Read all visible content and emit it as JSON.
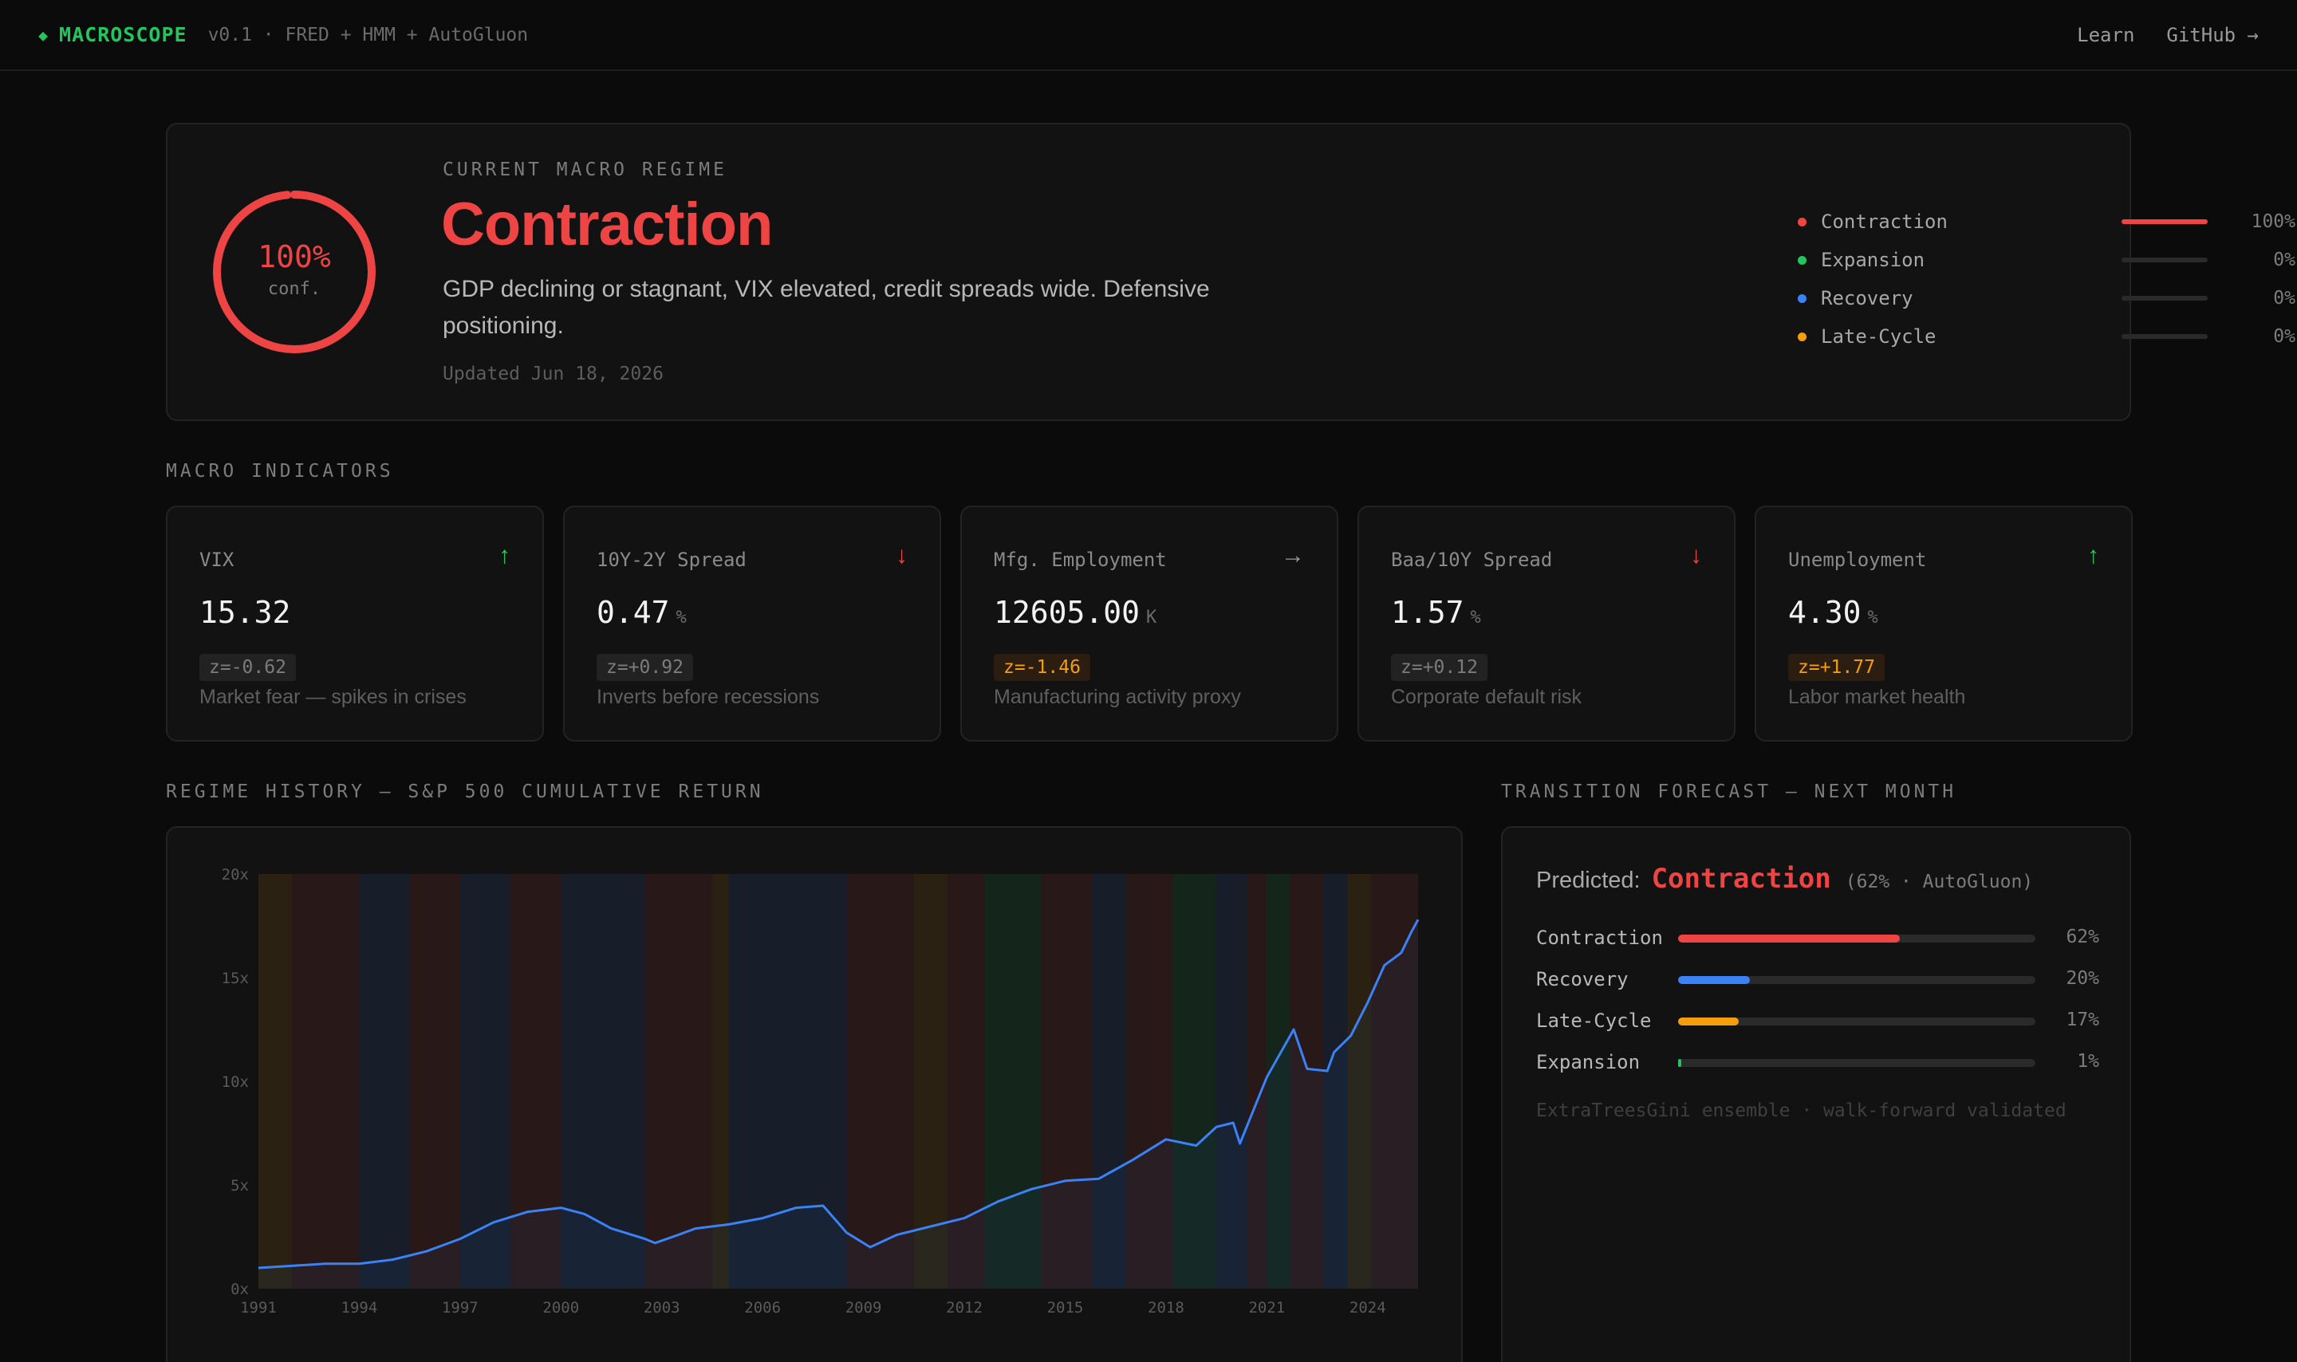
{
  "header": {
    "brand": "MACROSCOPE",
    "version": "v0.1 · FRED + HMM + AutoGluon",
    "nav": [
      "Learn",
      "GitHub →"
    ],
    "brand_color": "#22c55e"
  },
  "regime": {
    "eyebrow": "CURRENT MACRO REGIME",
    "title": "Contraction",
    "confidence": "100%",
    "confidence_fraction": 1.0,
    "confidence_label": "conf.",
    "description": "GDP declining or stagnant, VIX elevated, credit spreads wide. Defensive positioning.",
    "updated": "Updated Jun 18, 2026",
    "probabilities": [
      {
        "name": "Contraction",
        "pct": "100%",
        "value": 1.0,
        "color": "#ef4444"
      },
      {
        "name": "Expansion",
        "pct": "0%",
        "value": 0.0,
        "color": "#22c55e"
      },
      {
        "name": "Recovery",
        "pct": "0%",
        "value": 0.0,
        "color": "#3b82f6"
      },
      {
        "name": "Late-Cycle",
        "pct": "0%",
        "value": 0.0,
        "color": "#f59e0b"
      }
    ]
  },
  "indicators": {
    "section_title": "MACRO INDICATORS",
    "items": [
      {
        "name": "VIX",
        "value": "15.32",
        "unit": "",
        "arrow": "↑",
        "arrow_color": "#22c55e",
        "z": "z=-0.62",
        "z_warn": false,
        "desc": "Market fear — spikes in crises"
      },
      {
        "name": "10Y-2Y Spread",
        "value": "0.47",
        "unit": "%",
        "arrow": "↓",
        "arrow_color": "#ef4444",
        "z": "z=+0.92",
        "z_warn": false,
        "desc": "Inverts before recessions"
      },
      {
        "name": "Mfg. Employment",
        "value": "12605.00",
        "unit": "K",
        "arrow": "→",
        "arrow_color": "#9a9a9a",
        "z": "z=-1.46",
        "z_warn": true,
        "desc": "Manufacturing activity proxy"
      },
      {
        "name": "Baa/10Y Spread",
        "value": "1.57",
        "unit": "%",
        "arrow": "↓",
        "arrow_color": "#ef4444",
        "z": "z=+0.12",
        "z_warn": false,
        "desc": "Corporate default risk"
      },
      {
        "name": "Unemployment",
        "value": "4.30",
        "unit": "%",
        "arrow": "↑",
        "arrow_color": "#22c55e",
        "z": "z=+1.77",
        "z_warn": true,
        "desc": "Labor market health"
      }
    ]
  },
  "history": {
    "section_title": "REGIME HISTORY — S&P 500 CUMULATIVE RETURN"
  },
  "chart_data": {
    "type": "line",
    "title": "REGIME HISTORY — S&P 500 CUMULATIVE RETURN",
    "x_ticks": [
      "1991",
      "1994",
      "1997",
      "2000",
      "2003",
      "2006",
      "2009",
      "2012",
      "2015",
      "2018",
      "2021",
      "2024"
    ],
    "y_ticks": [
      "0x",
      "5x",
      "10x",
      "15x",
      "20x"
    ],
    "xlim": [
      1991,
      2025.5
    ],
    "ylim": [
      0,
      20
    ],
    "series": [
      {
        "color": "#3b82f6",
        "x": [
          1991,
          1992,
          1993,
          1994,
          1995,
          1996,
          1997,
          1998,
          1999,
          2000,
          2000.7,
          2001.5,
          2002.5,
          2002.8,
          2003.5,
          2004,
          2005,
          2006,
          2007,
          2007.8,
          2008.5,
          2009.2,
          2010,
          2011,
          2012,
          2013,
          2014,
          2015,
          2016,
          2017,
          2018,
          2018.9,
          2019.5,
          2020,
          2020.2,
          2020.5,
          2021,
          2021.8,
          2022.2,
          2022.8,
          2023,
          2023.5,
          2024,
          2024.5,
          2025,
          2025.3,
          2025.5
        ],
        "y": [
          1.0,
          1.1,
          1.2,
          1.2,
          1.4,
          1.8,
          2.4,
          3.2,
          3.7,
          3.9,
          3.6,
          2.9,
          2.4,
          2.2,
          2.6,
          2.9,
          3.1,
          3.4,
          3.9,
          4.0,
          2.7,
          2.0,
          2.6,
          3.0,
          3.4,
          4.2,
          4.8,
          5.2,
          5.3,
          6.2,
          7.2,
          6.9,
          7.8,
          8.0,
          7.0,
          8.2,
          10.2,
          12.5,
          10.6,
          10.5,
          11.4,
          12.2,
          13.8,
          15.6,
          16.2,
          17.2,
          17.8
        ]
      }
    ],
    "regime_bands": [
      {
        "from": 1991,
        "to": 1992,
        "regime": "Late-Cycle"
      },
      {
        "from": 1992,
        "to": 1994,
        "regime": "Contraction"
      },
      {
        "from": 1994,
        "to": 1995.5,
        "regime": "Recovery"
      },
      {
        "from": 1995.5,
        "to": 1997,
        "regime": "Contraction"
      },
      {
        "from": 1997,
        "to": 1998.5,
        "regime": "Recovery"
      },
      {
        "from": 1998.5,
        "to": 2000,
        "regime": "Contraction"
      },
      {
        "from": 2000,
        "to": 2002.5,
        "regime": "Recovery"
      },
      {
        "from": 2002.5,
        "to": 2004.5,
        "regime": "Contraction"
      },
      {
        "from": 2004.5,
        "to": 2005,
        "regime": "Late-Cycle"
      },
      {
        "from": 2005,
        "to": 2008.5,
        "regime": "Recovery"
      },
      {
        "from": 2008.5,
        "to": 2010.5,
        "regime": "Contraction"
      },
      {
        "from": 2010.5,
        "to": 2011.5,
        "regime": "Late-Cycle"
      },
      {
        "from": 2011.5,
        "to": 2012.6,
        "regime": "Contraction"
      },
      {
        "from": 2012.6,
        "to": 2014.3,
        "regime": "Expansion"
      },
      {
        "from": 2014.3,
        "to": 2015.8,
        "regime": "Contraction"
      },
      {
        "from": 2015.8,
        "to": 2016.8,
        "regime": "Recovery"
      },
      {
        "from": 2016.8,
        "to": 2018.2,
        "regime": "Contraction"
      },
      {
        "from": 2018.2,
        "to": 2019.5,
        "regime": "Expansion"
      },
      {
        "from": 2019.5,
        "to": 2020.4,
        "regime": "Recovery"
      },
      {
        "from": 2020.4,
        "to": 2021,
        "regime": "Contraction"
      },
      {
        "from": 2021,
        "to": 2021.7,
        "regime": "Expansion"
      },
      {
        "from": 2021.7,
        "to": 2022.7,
        "regime": "Contraction"
      },
      {
        "from": 2022.7,
        "to": 2023.4,
        "regime": "Recovery"
      },
      {
        "from": 2023.4,
        "to": 2024.1,
        "regime": "Late-Cycle"
      },
      {
        "from": 2024.1,
        "to": 2025.5,
        "regime": "Contraction"
      }
    ],
    "regime_colors": {
      "Contraction": "#ef4444",
      "Expansion": "#22c55e",
      "Recovery": "#3b82f6",
      "Late-Cycle": "#f59e0b"
    },
    "grid": false
  },
  "forecast": {
    "section_title": "TRANSITION FORECAST — NEXT MONTH",
    "predicted_label": "Predicted:",
    "predicted_value": "Contraction",
    "predicted_meta": "(62% · AutoGluon)",
    "rows": [
      {
        "name": "Contraction",
        "pct": "62%",
        "value": 0.62,
        "color": "#ef4444"
      },
      {
        "name": "Recovery",
        "pct": "20%",
        "value": 0.2,
        "color": "#3b82f6"
      },
      {
        "name": "Late-Cycle",
        "pct": "17%",
        "value": 0.17,
        "color": "#f59e0b"
      },
      {
        "name": "Expansion",
        "pct": "1%",
        "value": 0.01,
        "color": "#22c55e"
      }
    ],
    "footnote": "ExtraTreesGini ensemble · walk-forward validated"
  }
}
